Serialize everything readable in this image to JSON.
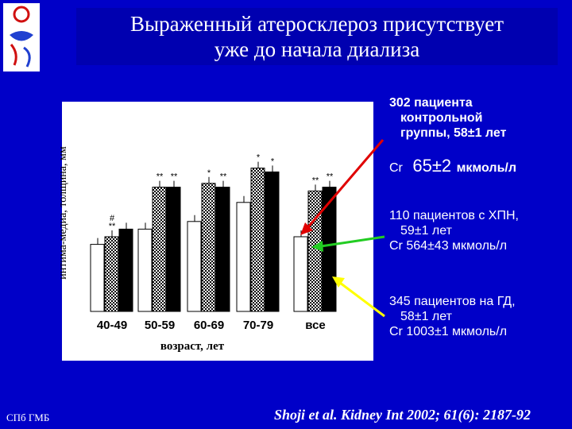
{
  "title": {
    "line1": "Выраженный атеросклероз присутствует",
    "line2": "уже до начала диализа"
  },
  "chart_data": {
    "type": "bar",
    "ylabel": "интима-медиа, толщина, мм",
    "xlabel": "возраст, лет",
    "categories": [
      "40-49",
      "50-59",
      "60-69",
      "70-79",
      "все"
    ],
    "series": [
      {
        "values": [
          0.56,
          0.64,
          0.68,
          0.78,
          0.6
        ],
        "color": "#ffffff",
        "pattern": "none",
        "annotations": [
          "",
          "",
          "",
          "",
          ""
        ]
      },
      {
        "values": [
          0.6,
          0.86,
          0.88,
          0.96,
          0.84
        ],
        "color": "#c8c8c8",
        "pattern": "checker",
        "annotations": [
          "# **",
          "**",
          "*",
          "*",
          "**"
        ]
      },
      {
        "values": [
          0.64,
          0.86,
          0.86,
          0.94,
          0.86
        ],
        "color": "#000000",
        "pattern": "none",
        "annotations": [
          "",
          "**",
          "**",
          "*",
          "**"
        ]
      }
    ],
    "grid": false,
    "legend": "none"
  },
  "groups": {
    "control": {
      "line1": "302 пациента",
      "line2": "контрольной",
      "line3": "группы, 58±1 лет"
    },
    "control_cr": {
      "prefix": "Cr",
      "value": "65±2",
      "unit": "мкмоль/л"
    },
    "ckd": {
      "line1": "110 пациентов с ХПН,",
      "line2": "59±1 лет",
      "line3": "Cr  564±43 мкмоль/л"
    },
    "hd": {
      "line1": "345 пациентов на ГД,",
      "line2": "58±1 лет",
      "line3": "Cr  1003±1 мкмоль/л"
    }
  },
  "arrows": {
    "red": "#e00000",
    "green": "#22cc22",
    "yellow": "#ffff00"
  },
  "footer": {
    "left": "СПб ГМБ",
    "citation": "Shoji et al. Kidney Int 2002; 61(6): 2187-92"
  }
}
